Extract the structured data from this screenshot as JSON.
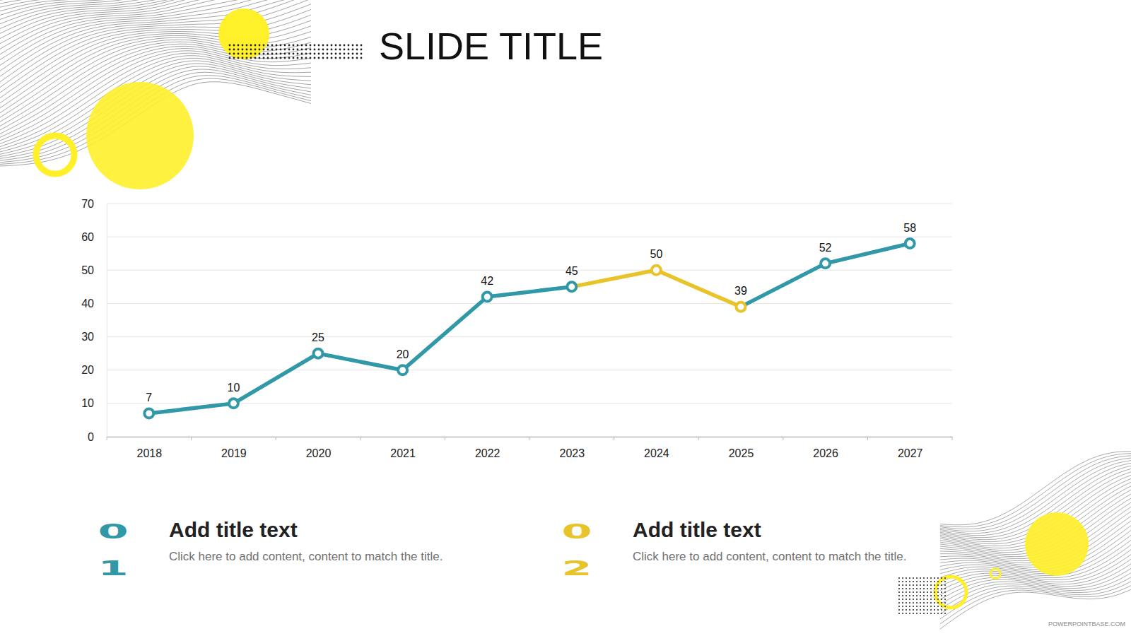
{
  "slide_title": "SLIDE TITLE",
  "chart_data": {
    "type": "line",
    "categories": [
      "2018",
      "2019",
      "2020",
      "2021",
      "2022",
      "2023",
      "2024",
      "2025",
      "2026",
      "2027"
    ],
    "series": [
      {
        "color": "#3198a8",
        "colors": [
          "#3198a8",
          "#3198a8",
          "#3198a8",
          "#3198a8",
          "#3198a8",
          "#3198a8",
          "#e9c32a",
          "#e9c32a",
          "#3198a8",
          "#3198a8"
        ],
        "marker": "circle",
        "values": [
          7,
          10,
          25,
          20,
          42,
          45,
          50,
          39,
          52,
          58
        ]
      }
    ],
    "ylim": [
      0,
      70
    ],
    "yticks": [
      0,
      10,
      20,
      30,
      40,
      50,
      60,
      70
    ],
    "grid": true,
    "data_labels": true
  },
  "items": [
    {
      "number": "01",
      "title": "Add title text",
      "text": "Click here to add content, content to match the title.",
      "color": "#3198a8"
    },
    {
      "number": "02",
      "title": "Add title text",
      "text": "Click here to add content, content to match the title.",
      "color": "#e9c32a"
    }
  ],
  "watermark": "POWERPOINTBASE.COM"
}
